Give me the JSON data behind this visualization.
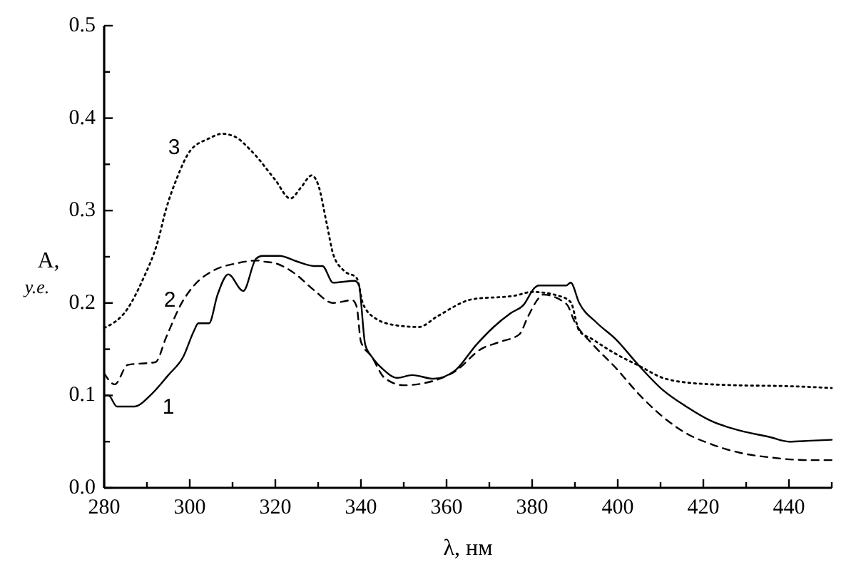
{
  "chart_data": {
    "type": "line",
    "xlabel": "λ, нм",
    "ylabel": "A, у.е.",
    "xlim": [
      280,
      450
    ],
    "ylim": [
      0,
      0.5
    ],
    "xticks": [
      280,
      {
        "value": 290,
        "label": null
      },
      300,
      {
        "value": 310,
        "label": null
      },
      320,
      {
        "value": 330,
        "label": null
      },
      340,
      {
        "value": 350,
        "label": null
      },
      360,
      {
        "value": 370,
        "label": null
      },
      380,
      {
        "value": 390,
        "label": null
      },
      400,
      {
        "value": 410,
        "label": null
      },
      420,
      {
        "value": 430,
        "label": null
      },
      440,
      {
        "value": 450,
        "label": null
      }
    ],
    "yticks": [
      {
        "value": 0,
        "label": "0.0"
      },
      {
        "value": 0.05,
        "label": null
      },
      0.1,
      {
        "value": 0.15,
        "label": null
      },
      0.2,
      {
        "value": 0.25,
        "label": null
      },
      0.3,
      {
        "value": 0.35,
        "label": null
      },
      0.4,
      {
        "value": 0.45,
        "label": null
      },
      0.5
    ],
    "grid": false,
    "marker": "none",
    "series": [
      {
        "name": "1",
        "color": "#000000",
        "line_style": "solid",
        "x": [
          280,
          281,
          283,
          287,
          291,
          295,
          298.5,
          301,
          302,
          304.5,
          306.5,
          309,
          312.5,
          315.5,
          317,
          321,
          325,
          329,
          331,
          333.5,
          338.5,
          339.5,
          341,
          342.5,
          345,
          348.5,
          352,
          357,
          362,
          367,
          371,
          375,
          378,
          380.5,
          381.5,
          388,
          389,
          391,
          395,
          399.5,
          405,
          410.5,
          416,
          422,
          428.5,
          435.5,
          440,
          445,
          450
        ],
        "values": [
          0.1,
          0.1,
          0.088,
          0.088,
          0.101,
          0.122,
          0.142,
          0.17,
          0.178,
          0.178,
          0.209,
          0.231,
          0.213,
          0.248,
          0.251,
          0.251,
          0.245,
          0.24,
          0.24,
          0.222,
          0.224,
          0.22,
          0.155,
          0.142,
          0.129,
          0.119,
          0.122,
          0.118,
          0.127,
          0.155,
          0.174,
          0.189,
          0.198,
          0.216,
          0.219,
          0.219,
          0.222,
          0.2,
          0.179,
          0.161,
          0.132,
          0.106,
          0.088,
          0.072,
          0.062,
          0.055,
          0.05,
          0.051,
          0.052
        ]
      },
      {
        "name": "2",
        "color": "#000000",
        "line_style": "dashed",
        "x": [
          280,
          282.5,
          285.5,
          292,
          294.5,
          298,
          301,
          305.5,
          311,
          316,
          317,
          320,
          324.5,
          329,
          333.5,
          338,
          339,
          340,
          342.5,
          345.5,
          350,
          355.5,
          362,
          368,
          372.5,
          377,
          379,
          381.5,
          382.5,
          388,
          390,
          394,
          399.5,
          405,
          410.5,
          416,
          422,
          428.5,
          435.5,
          444.5,
          450
        ],
        "values": [
          0.124,
          0.112,
          0.133,
          0.136,
          0.163,
          0.199,
          0.219,
          0.235,
          0.243,
          0.246,
          0.245,
          0.243,
          0.232,
          0.214,
          0.2,
          0.203,
          0.196,
          0.158,
          0.142,
          0.119,
          0.111,
          0.114,
          0.126,
          0.15,
          0.158,
          0.166,
          0.185,
          0.205,
          0.209,
          0.199,
          0.179,
          0.156,
          0.13,
          0.101,
          0.077,
          0.059,
          0.047,
          0.038,
          0.033,
          0.03,
          0.03
        ]
      },
      {
        "name": "3",
        "color": "#000000",
        "line_style": "dotted",
        "x": [
          280,
          285.5,
          289,
          292.5,
          294.5,
          297,
          300,
          304.5,
          307.5,
          310.5,
          314.5,
          320,
          323.5,
          326,
          328.5,
          330,
          332,
          333.5,
          336,
          339,
          340.5,
          343.5,
          348,
          353.5,
          358,
          366,
          376,
          380,
          386,
          389,
          391,
          394,
          399.5,
          405,
          410.5,
          416,
          427.5,
          440,
          450
        ],
        "values": [
          0.173,
          0.194,
          0.225,
          0.266,
          0.302,
          0.335,
          0.364,
          0.378,
          0.383,
          0.38,
          0.364,
          0.333,
          0.313,
          0.325,
          0.338,
          0.328,
          0.286,
          0.253,
          0.235,
          0.227,
          0.199,
          0.183,
          0.176,
          0.174,
          0.186,
          0.204,
          0.208,
          0.212,
          0.208,
          0.201,
          0.17,
          0.161,
          0.145,
          0.132,
          0.119,
          0.114,
          0.111,
          0.11,
          0.108
        ]
      }
    ]
  }
}
